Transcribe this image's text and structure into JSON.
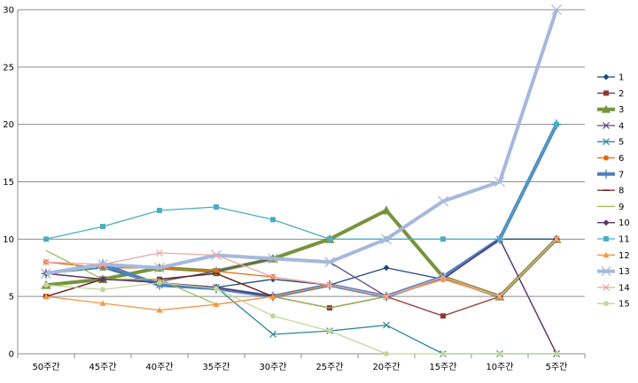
{
  "chart_data": {
    "type": "line",
    "categories": [
      "50주간",
      "45주간",
      "40주간",
      "35주간",
      "30주간",
      "25주간",
      "20주간",
      "15주간",
      "10주간",
      "5주간"
    ],
    "ylim": [
      0,
      30
    ],
    "yticks": [
      0,
      5,
      10,
      15,
      20,
      25,
      30
    ],
    "grid": "horizontal",
    "legend_position": "right",
    "series": [
      {
        "name": "1",
        "color": "#1f497d",
        "marker": "diamond",
        "values": [
          7,
          7.5,
          6.2,
          5.8,
          6.5,
          6,
          7.5,
          6.5,
          10,
          10
        ]
      },
      {
        "name": "2",
        "color": "#943634",
        "marker": "square",
        "values": [
          5,
          6.5,
          6.5,
          7,
          5,
          4,
          5,
          3.3,
          5,
          10
        ]
      },
      {
        "name": "3",
        "color": "#77933c",
        "marker": "triangle",
        "thick": true,
        "values": [
          6,
          6.5,
          7.5,
          7.2,
          8.3,
          10,
          12.5,
          6.7,
          5,
          10
        ]
      },
      {
        "name": "4",
        "color": "#5f497a",
        "marker": "x",
        "values": [
          7,
          6.5,
          6.3,
          7.2,
          8.3,
          8,
          5,
          6.7,
          10,
          0
        ]
      },
      {
        "name": "5",
        "color": "#31859c",
        "marker": "x",
        "values": [
          7,
          7.5,
          6,
          5.8,
          1.7,
          2,
          2.5,
          0,
          0,
          0
        ]
      },
      {
        "name": "6",
        "color": "#e46c0a",
        "marker": "circle",
        "values": [
          8,
          7.5,
          7.5,
          7.2,
          6.7,
          6,
          5,
          6.7,
          5,
          10
        ]
      },
      {
        "name": "7",
        "color": "#4f81bd",
        "marker": "plus",
        "thick": true,
        "values": [
          7,
          7.8,
          6,
          5.7,
          5,
          6,
          5,
          6.7,
          10,
          20
        ]
      },
      {
        "name": "8",
        "color": "#632423",
        "marker": "dash",
        "values": [
          5,
          6.5,
          6.5,
          7,
          5,
          4,
          5,
          6.5,
          5,
          10
        ]
      },
      {
        "name": "9",
        "color": "#9bbb59",
        "marker": "none",
        "values": [
          9,
          6.5,
          6.5,
          4.3,
          5,
          4,
          5,
          6.5,
          5,
          10
        ]
      },
      {
        "name": "10",
        "color": "#5c3566",
        "marker": "diamond",
        "values": [
          7,
          6.5,
          6.2,
          5.8,
          5,
          6,
          5,
          6.5,
          10,
          0
        ]
      },
      {
        "name": "11",
        "color": "#4bacc6",
        "marker": "square",
        "values": [
          10,
          11.1,
          12.5,
          12.8,
          11.7,
          10,
          10,
          10,
          10,
          20
        ]
      },
      {
        "name": "12",
        "color": "#f79646",
        "marker": "triangle",
        "values": [
          5,
          4.4,
          3.8,
          4.3,
          5,
          6,
          5,
          6.5,
          5,
          10
        ]
      },
      {
        "name": "13",
        "color": "#a6b8dc",
        "marker": "x",
        "thick": true,
        "values": [
          7,
          7.8,
          7.5,
          8.6,
          8.3,
          8,
          10,
          13.3,
          15,
          30
        ]
      },
      {
        "name": "14",
        "color": "#e6a9a9",
        "marker": "x",
        "values": [
          8,
          7.8,
          8.8,
          8.6,
          6.7,
          6,
          5,
          6.7,
          5,
          10
        ]
      },
      {
        "name": "15",
        "color": "#c3d69b",
        "marker": "circle",
        "values": [
          6,
          5.6,
          6.2,
          5.7,
          3.3,
          2,
          0,
          0,
          0,
          0
        ]
      }
    ]
  }
}
